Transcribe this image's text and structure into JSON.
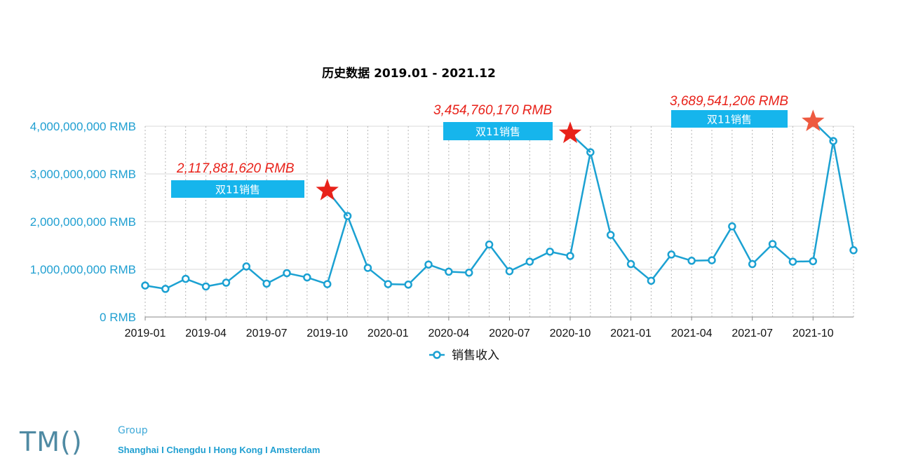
{
  "chart_data": {
    "type": "line",
    "title": "历史数据 2019.01 - 2021.12",
    "xlabel": "",
    "ylabel": "",
    "ylim": [
      0,
      4000000000
    ],
    "y_ticks": [
      "0 RMB",
      "1,000,000,000 RMB",
      "2,000,000,000 RMB",
      "3,000,000,000 RMB",
      "4,000,000,000 RMB"
    ],
    "x_tick_labels": [
      "2019-01",
      "2019-04",
      "2019-07",
      "2019-10",
      "2020-01",
      "2020-04",
      "2020-07",
      "2020-10",
      "2021-01",
      "2021-04",
      "2021-07",
      "2021-10"
    ],
    "x": [
      "2019-01",
      "2019-02",
      "2019-03",
      "2019-04",
      "2019-05",
      "2019-06",
      "2019-07",
      "2019-08",
      "2019-09",
      "2019-10",
      "2019-11",
      "2019-12",
      "2020-01",
      "2020-02",
      "2020-03",
      "2020-04",
      "2020-05",
      "2020-06",
      "2020-07",
      "2020-08",
      "2020-09",
      "2020-10",
      "2020-11",
      "2020-12",
      "2021-01",
      "2021-02",
      "2021-03",
      "2021-04",
      "2021-05",
      "2021-06",
      "2021-07",
      "2021-08",
      "2021-09",
      "2021-10",
      "2021-11",
      "2021-12"
    ],
    "series": [
      {
        "name": "销售收入",
        "color": "#1ba1d2",
        "values": [
          660000000,
          590000000,
          800000000,
          640000000,
          720000000,
          1060000000,
          700000000,
          920000000,
          830000000,
          690000000,
          2117881620,
          1030000000,
          690000000,
          680000000,
          1100000000,
          950000000,
          930000000,
          1520000000,
          960000000,
          1160000000,
          1370000000,
          1280000000,
          3454760170,
          1720000000,
          1110000000,
          760000000,
          1310000000,
          1180000000,
          1190000000,
          1900000000,
          1110000000,
          1530000000,
          1160000000,
          1170000000,
          3689541206,
          1400000000
        ]
      }
    ],
    "grid": true,
    "legend": "bottom",
    "annotations": [
      {
        "value_text": "2,117,881,620 RMB",
        "label": "双11销售",
        "x": "2019-10",
        "y": 2650000000,
        "star_color": "#e8221a"
      },
      {
        "value_text": "3,454,760,170 RMB",
        "label": "双11销售",
        "x": "2020-10",
        "y": 3850000000,
        "star_color": "#e8221a"
      },
      {
        "value_text": "3,689,541,206 RMB",
        "label": "双11销售",
        "x": "2021-10",
        "y": 4100000000,
        "star_color": "#ee5a40"
      }
    ]
  },
  "logo": {
    "brand": "TM()",
    "group": "Group",
    "cities": "Shanghai  I  Chengdu I Hong Kong  I  Amsterdam"
  }
}
